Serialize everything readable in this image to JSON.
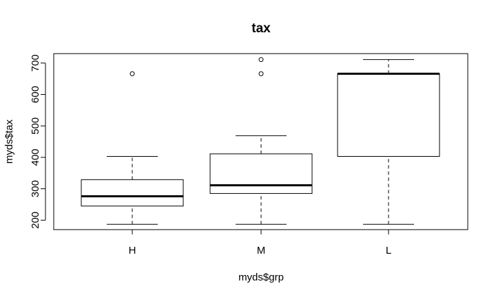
{
  "chart_data": {
    "type": "boxplot",
    "title": "tax",
    "xlabel": "myds$grp",
    "ylabel": "myds$tax",
    "ylim": [
      170,
      730
    ],
    "yticks": [
      200,
      300,
      400,
      500,
      600,
      700
    ],
    "ytick_labels": [
      "200",
      "300",
      "400",
      "500",
      "600",
      "700"
    ],
    "categories": [
      "H",
      "M",
      "L"
    ],
    "boxes": [
      {
        "label": "H",
        "whisker_low": 187,
        "q1": 245,
        "median": 276,
        "q3": 329,
        "whisker_high": 403,
        "outliers": [
          666
        ]
      },
      {
        "label": "M",
        "whisker_low": 187,
        "q1": 285,
        "median": 311,
        "q3": 411,
        "whisker_high": 469,
        "outliers": [
          711,
          666
        ]
      },
      {
        "label": "L",
        "whisker_low": 187,
        "q1": 403,
        "median": 666,
        "q3": 666,
        "whisker_high": 711,
        "outliers": []
      }
    ],
    "grid": false,
    "legend": false
  }
}
